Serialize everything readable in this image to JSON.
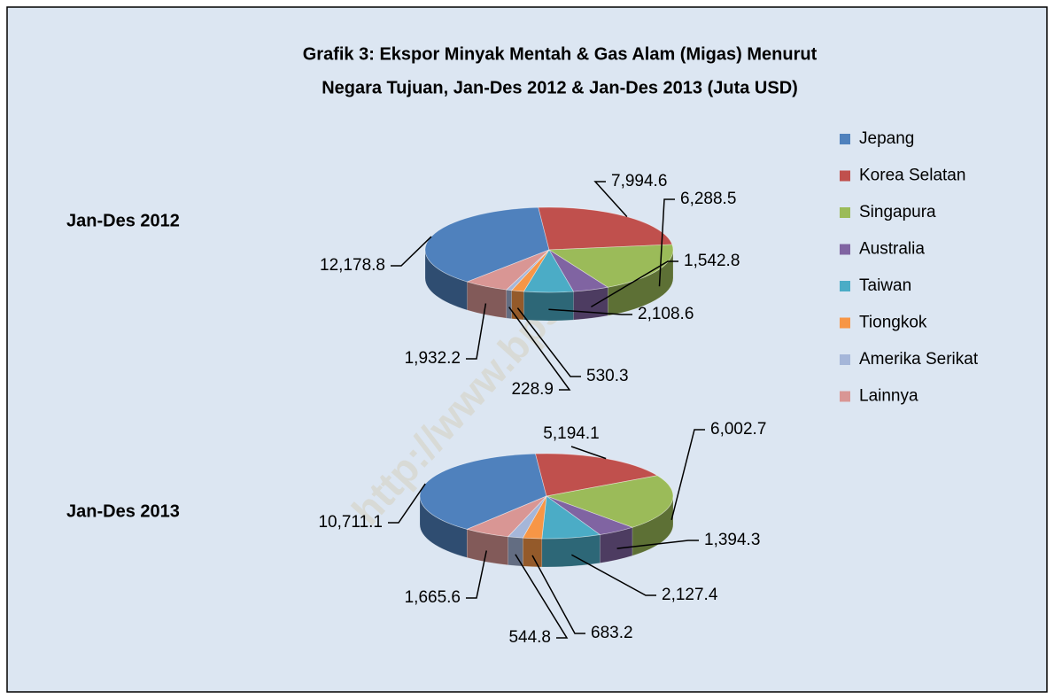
{
  "title": [
    "Grafik 3: Ekspor Minyak Mentah &  Gas Alam (Migas) Menurut",
    "Negara Tujuan, Jan-Des 2012 & Jan-Des 2013 (Juta USD)"
  ],
  "watermark": "http://www.bps.go.id",
  "chart_data": [
    {
      "type": "pie",
      "title": "Jan-Des 2012",
      "categories": [
        "Jepang",
        "Korea Selatan",
        "Singapura",
        "Australia",
        "Taiwan",
        "Tiongkok",
        "Amerika Serikat",
        "Lainnya"
      ],
      "values": [
        12178.8,
        7994.6,
        6288.5,
        1542.8,
        2108.6,
        530.3,
        228.9,
        1932.2
      ],
      "value_labels": [
        "12,178.8",
        "7,994.6",
        "6,288.5",
        "1,542.8",
        "2,108.6",
        "530.3",
        "228.9",
        "1,932.2"
      ],
      "colors": [
        "#4f81bd",
        "#c0504d",
        "#9bbb59",
        "#8064a2",
        "#4bacc6",
        "#f79646",
        "#a5b6d9",
        "#d99694"
      ],
      "legend": "right"
    },
    {
      "type": "pie",
      "title": "Jan-Des 2013",
      "categories": [
        "Jepang",
        "Korea Selatan",
        "Singapura",
        "Australia",
        "Taiwan",
        "Tiongkok",
        "Amerika Serikat",
        "Lainnya"
      ],
      "values": [
        10711.1,
        5194.1,
        6002.7,
        1394.3,
        2127.4,
        683.2,
        544.8,
        1665.6
      ],
      "value_labels": [
        "10,711.1",
        "5,194.1",
        "6,002.7",
        "1,394.3",
        "2,127.4",
        "683.2",
        "544.8",
        "1,665.6"
      ],
      "colors": [
        "#4f81bd",
        "#c0504d",
        "#9bbb59",
        "#8064a2",
        "#4bacc6",
        "#f79646",
        "#a5b6d9",
        "#d99694"
      ]
    }
  ]
}
